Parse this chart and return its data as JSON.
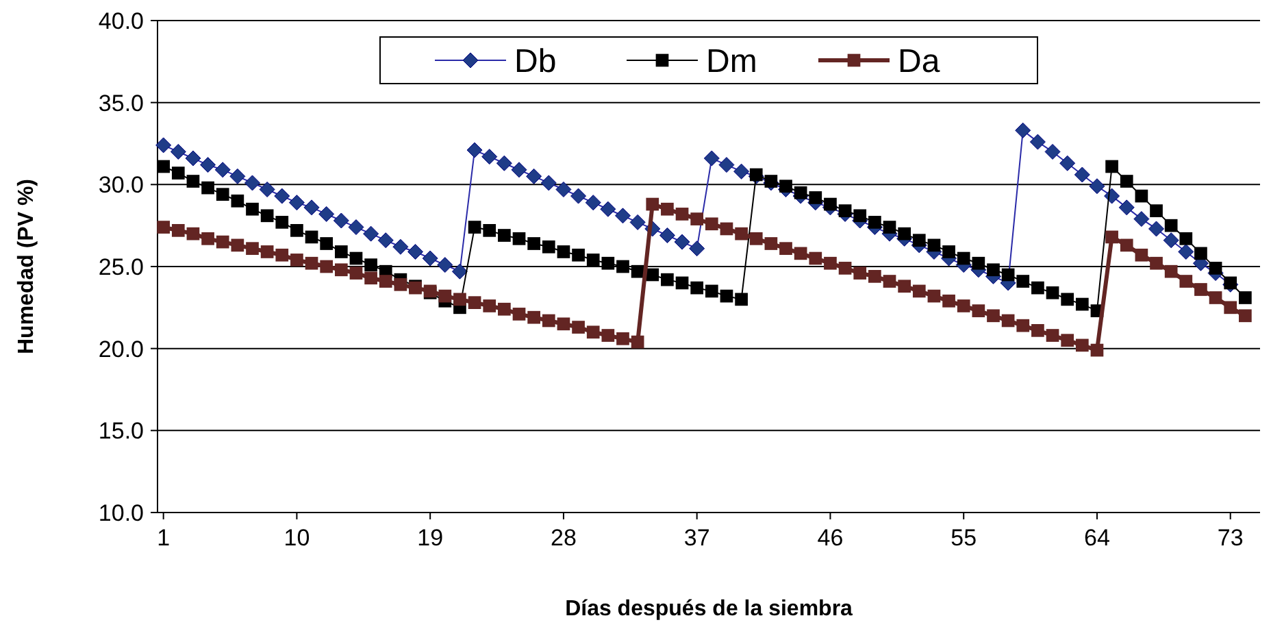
{
  "chart_data": {
    "type": "line",
    "xlabel": "Días después de la siembra",
    "ylabel": "Humedad (PV %)",
    "x": [
      1,
      2,
      3,
      4,
      5,
      6,
      7,
      8,
      9,
      10,
      11,
      12,
      13,
      14,
      15,
      16,
      17,
      18,
      19,
      20,
      21,
      22,
      23,
      24,
      25,
      26,
      27,
      28,
      29,
      30,
      31,
      32,
      33,
      34,
      35,
      36,
      37,
      38,
      39,
      40,
      41,
      42,
      43,
      44,
      45,
      46,
      47,
      48,
      49,
      50,
      51,
      52,
      53,
      54,
      55,
      56,
      57,
      58,
      59,
      60,
      61,
      62,
      63,
      64,
      65,
      66,
      67,
      68,
      69,
      70,
      71,
      72,
      73,
      74
    ],
    "xlim": [
      0.6,
      75
    ],
    "xticks": [
      1,
      10,
      19,
      28,
      37,
      46,
      55,
      64,
      73
    ],
    "ylim": [
      10,
      40
    ],
    "yticks": [
      {
        "value": 10,
        "label": "10.0"
      },
      {
        "value": 15,
        "label": "15.0"
      },
      {
        "value": 20,
        "label": "20.0"
      },
      {
        "value": 25,
        "label": "25.0"
      },
      {
        "value": 30,
        "label": "30.0"
      },
      {
        "value": 35,
        "label": "35.0"
      },
      {
        "value": 40,
        "label": "40.0"
      }
    ],
    "grid": "y",
    "legend": "top",
    "line_style": "solid",
    "series": [
      {
        "name": "Db",
        "color": "#1f3c88",
        "marker": "diamond",
        "values": [
          32.4,
          32.0,
          31.6,
          31.2,
          30.9,
          30.5,
          30.1,
          29.7,
          29.3,
          28.9,
          28.6,
          28.2,
          27.8,
          27.4,
          27.0,
          26.6,
          26.2,
          25.9,
          25.5,
          25.1,
          24.7,
          32.1,
          31.7,
          31.3,
          30.9,
          30.5,
          30.1,
          29.7,
          29.3,
          28.9,
          28.5,
          28.1,
          27.7,
          27.3,
          26.9,
          26.5,
          26.1,
          31.6,
          31.2,
          30.8,
          30.5,
          30.1,
          29.7,
          29.3,
          28.9,
          28.6,
          28.2,
          27.8,
          27.4,
          27.0,
          26.7,
          26.3,
          25.9,
          25.5,
          25.1,
          24.8,
          24.4,
          24.0,
          33.3,
          32.6,
          32.0,
          31.3,
          30.6,
          29.9,
          29.3,
          28.6,
          27.9,
          27.3,
          26.6,
          25.9,
          25.2,
          24.6,
          23.9,
          null
        ]
      },
      {
        "name": "Dm",
        "color": "#000000",
        "marker": "square",
        "values": [
          31.1,
          30.7,
          30.2,
          29.8,
          29.4,
          29.0,
          28.5,
          28.1,
          27.7,
          27.2,
          26.8,
          26.4,
          25.9,
          25.5,
          25.1,
          24.7,
          24.2,
          23.8,
          23.4,
          22.9,
          22.5,
          27.4,
          27.2,
          26.9,
          26.7,
          26.4,
          26.2,
          25.9,
          25.7,
          25.4,
          25.2,
          25.0,
          24.7,
          24.5,
          24.2,
          24.0,
          23.7,
          23.5,
          23.2,
          23.0,
          30.6,
          30.2,
          29.9,
          29.5,
          29.2,
          28.8,
          28.4,
          28.1,
          27.7,
          27.4,
          27.0,
          26.6,
          26.3,
          25.9,
          25.5,
          25.2,
          24.8,
          24.5,
          24.1,
          23.7,
          23.4,
          23.0,
          22.7,
          22.3,
          31.1,
          30.2,
          29.3,
          28.4,
          27.5,
          26.7,
          25.8,
          24.9,
          24.0,
          23.1
        ]
      },
      {
        "name": "Da",
        "color": "#632523",
        "marker": "square",
        "values": [
          27.4,
          27.2,
          27.0,
          26.7,
          26.5,
          26.3,
          26.1,
          25.9,
          25.7,
          25.4,
          25.2,
          25.0,
          24.8,
          24.6,
          24.3,
          24.1,
          23.9,
          23.7,
          23.5,
          23.2,
          23.0,
          22.8,
          22.6,
          22.4,
          22.1,
          21.9,
          21.7,
          21.5,
          21.3,
          21.0,
          20.8,
          20.6,
          20.4,
          28.8,
          28.5,
          28.2,
          27.9,
          27.6,
          27.3,
          27.0,
          26.7,
          26.4,
          26.1,
          25.8,
          25.5,
          25.2,
          24.9,
          24.6,
          24.4,
          24.1,
          23.8,
          23.5,
          23.2,
          22.9,
          22.6,
          22.3,
          22.0,
          21.7,
          21.4,
          21.1,
          20.8,
          20.5,
          20.2,
          19.9,
          26.8,
          26.3,
          25.7,
          25.2,
          24.7,
          24.1,
          23.6,
          23.1,
          22.5,
          22.0
        ]
      }
    ]
  }
}
